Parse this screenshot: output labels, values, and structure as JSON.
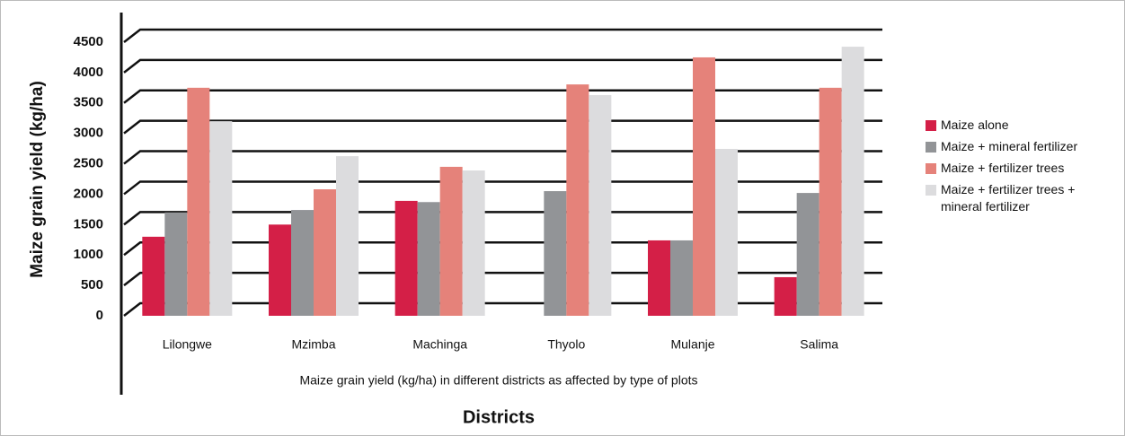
{
  "chart_data": {
    "type": "bar",
    "ylabel": "Maize grain yield (kg/ha)",
    "xlabel": "Districts",
    "caption": "Maize grain yield (kg/ha) in different districts as affected by type of plots",
    "categories": [
      "Lilongwe",
      "Mzimba",
      "Machinga",
      "Thyolo",
      "Mulanje",
      "Salima"
    ],
    "series": [
      {
        "name": "Maize alone",
        "color": "#d41f47",
        "values": [
          1300,
          1500,
          1890,
          null,
          1240,
          635
        ]
      },
      {
        "name": "Maize + mineral fertilizer",
        "color": "#929497",
        "values": [
          1700,
          1740,
          1870,
          2050,
          1240,
          2020
        ]
      },
      {
        "name": "Maize + fertilizer trees",
        "color": "#e5827a",
        "values": [
          3750,
          2080,
          2450,
          3805,
          4250,
          3750
        ]
      },
      {
        "name": "Maize + fertilizer trees + mineral fertilizer",
        "color": "#dcdcde",
        "values": [
          3200,
          2625,
          2390,
          3630,
          2745,
          4425
        ]
      }
    ],
    "ylim": [
      0,
      4500
    ],
    "yticks": [
      0,
      500,
      1000,
      1500,
      2000,
      2500,
      3000,
      3500,
      4000,
      4500
    ],
    "grid": true,
    "legend": "right"
  }
}
